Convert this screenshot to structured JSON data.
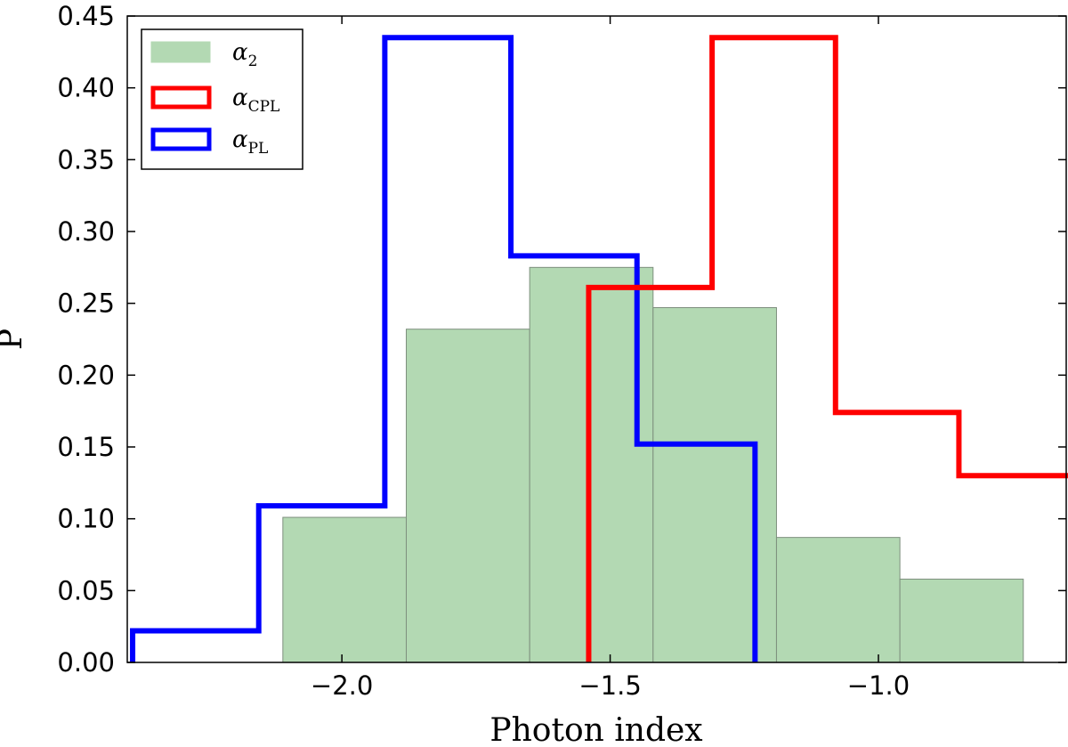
{
  "chart_data": {
    "type": "histogram",
    "xlabel": "Photon index",
    "ylabel": "P",
    "xlim": [
      -2.4,
      -0.65
    ],
    "ylim": [
      0,
      0.45
    ],
    "x_ticks": [
      -2.0,
      -1.5,
      -1.0
    ],
    "x_tick_labels": [
      "−2.0",
      "−1.5",
      "−1.0"
    ],
    "y_ticks": [
      0,
      0.05,
      0.1,
      0.15,
      0.2,
      0.25,
      0.3,
      0.35,
      0.4,
      0.45
    ],
    "y_tick_labels": [
      "0.00",
      "0.05",
      "0.10",
      "0.15",
      "0.20",
      "0.25",
      "0.30",
      "0.35",
      "0.40",
      "0.45"
    ],
    "series": [
      {
        "name": "alpha_2",
        "base": "α",
        "sub": "2",
        "style": "filled",
        "color": "#b3d9b3",
        "edge_color": "#7d8f7d",
        "bin_edges": [
          -2.11,
          -1.88,
          -1.65,
          -1.42,
          -1.19,
          -0.96,
          -0.73
        ],
        "values": [
          0.101,
          0.232,
          0.275,
          0.247,
          0.087,
          0.058
        ]
      },
      {
        "name": "alpha_CPL",
        "base": "α",
        "sub": "CPL",
        "style": "step",
        "color": "#ff0000",
        "bin_edges": [
          -1.54,
          -1.31,
          -1.08,
          -0.85,
          -0.62
        ],
        "values": [
          0.261,
          0.435,
          0.174,
          0.13
        ]
      },
      {
        "name": "alpha_PL",
        "base": "α",
        "sub": "PL",
        "style": "step",
        "color": "#0000ff",
        "bin_edges": [
          -2.39,
          -2.155,
          -1.92,
          -1.685,
          -1.45,
          -1.23
        ],
        "values": [
          0.022,
          0.109,
          0.435,
          0.283,
          0.152
        ]
      }
    ],
    "legend_position": "top-left"
  }
}
